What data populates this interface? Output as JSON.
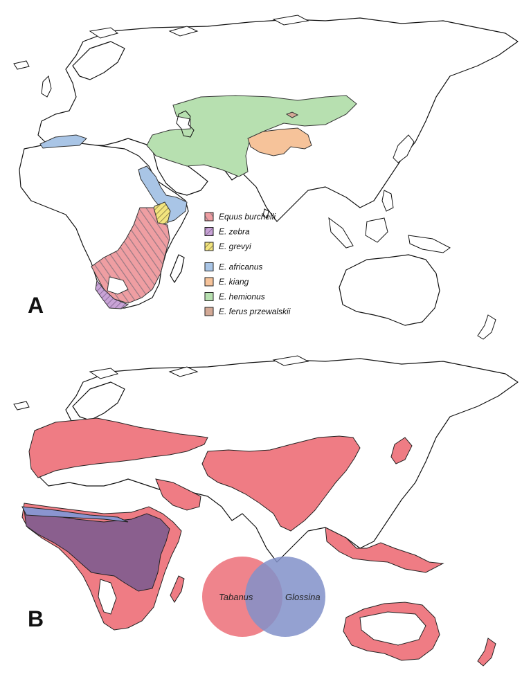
{
  "panels": [
    {
      "label": "A"
    },
    {
      "label": "B"
    }
  ],
  "legend": [
    {
      "name": "Equus burchelli",
      "color": "#e88a8e",
      "pattern": "hatch"
    },
    {
      "name": "E. zebra",
      "color": "#c79bd0",
      "pattern": "hatch"
    },
    {
      "name": "E. grevyi",
      "color": "#f0e27a",
      "pattern": "hatch"
    },
    {
      "name": "E. africanus",
      "color": "#a9c5e6",
      "pattern": "solid"
    },
    {
      "name": "E. kiang",
      "color": "#f6c39a",
      "pattern": "solid"
    },
    {
      "name": "E. hemionus",
      "color": "#b7e0b0",
      "pattern": "solid"
    },
    {
      "name": "E. ferus przewalskii",
      "color": "#d3a996",
      "pattern": "solid"
    }
  ],
  "venn": {
    "left_label": "Tabanus",
    "right_label": "Glossina",
    "left_color": "#ec6f78",
    "right_color": "#8191c9"
  },
  "colors": {
    "tabanus": "#ef7c84",
    "glossina": "#8a95d0",
    "overlap": "#8a5f8e"
  }
}
